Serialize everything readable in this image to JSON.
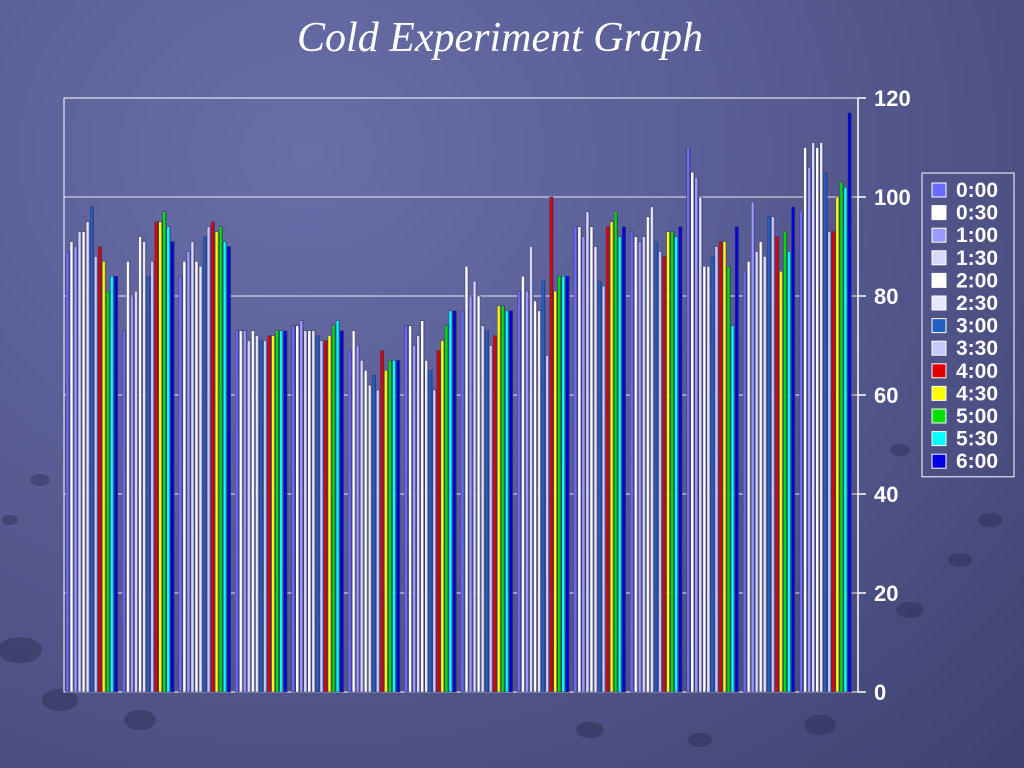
{
  "title": "Cold Experiment Graph",
  "chart_data": {
    "type": "bar",
    "title": "Cold Experiment Graph",
    "xlabel": "",
    "ylabel": "",
    "ylim": [
      0,
      120
    ],
    "yticks": [
      0,
      20,
      40,
      60,
      80,
      100,
      120
    ],
    "grid": true,
    "legend_position": "right",
    "series_names": [
      "0:00",
      "0:30",
      "1:00",
      "1:30",
      "2:00",
      "2:30",
      "3:00",
      "3:30",
      "4:00",
      "4:30",
      "5:00",
      "5:30",
      "6:00"
    ],
    "series_colors": [
      "#6b6bff",
      "#ffffff",
      "#9a9aff",
      "#d8d8ff",
      "#ffffff",
      "#e6e6ff",
      "#2060c0",
      "#c8c8ff",
      "#e00000",
      "#ffff00",
      "#00e000",
      "#00ffff",
      "#0000e0"
    ],
    "groups": [
      [
        89,
        91,
        90,
        93,
        93,
        95,
        98,
        88,
        90,
        87,
        81,
        84,
        84
      ],
      [
        73,
        87,
        80,
        81,
        92,
        91,
        84,
        87,
        95,
        95,
        97,
        94,
        91
      ],
      [
        84,
        87,
        89,
        91,
        87,
        86,
        92,
        94,
        95,
        93,
        94,
        91,
        90
      ],
      [
        73,
        73,
        73,
        71,
        73,
        72,
        71,
        71,
        72,
        72,
        73,
        73,
        73
      ],
      [
        74,
        74,
        75,
        73,
        73,
        73,
        72,
        71,
        71,
        72,
        74,
        75,
        73
      ],
      [
        69,
        73,
        70,
        67,
        65,
        62,
        64,
        61,
        69,
        65,
        67,
        67,
        67
      ],
      [
        74,
        74,
        70,
        72,
        75,
        67,
        65,
        61,
        69,
        71,
        74,
        77,
        77
      ],
      [
        77,
        86,
        80,
        83,
        80,
        74,
        73,
        70,
        72,
        78,
        78,
        77,
        77
      ],
      [
        81,
        84,
        81,
        90,
        79,
        77,
        83,
        68,
        100,
        81,
        84,
        84,
        84
      ],
      [
        94,
        94,
        92,
        97,
        94,
        90,
        83,
        82,
        94,
        95,
        97,
        92,
        94
      ],
      [
        93,
        92,
        91,
        92,
        96,
        98,
        91,
        89,
        88,
        93,
        93,
        92,
        94
      ],
      [
        110,
        105,
        104,
        100,
        86,
        86,
        88,
        90,
        91,
        91,
        86,
        74,
        94
      ],
      [
        85,
        87,
        99,
        89,
        91,
        88,
        96,
        96,
        92,
        85,
        93,
        89,
        98
      ],
      [
        97,
        110,
        106,
        111,
        110,
        111,
        105,
        93,
        93,
        100,
        103,
        102,
        117
      ]
    ]
  }
}
